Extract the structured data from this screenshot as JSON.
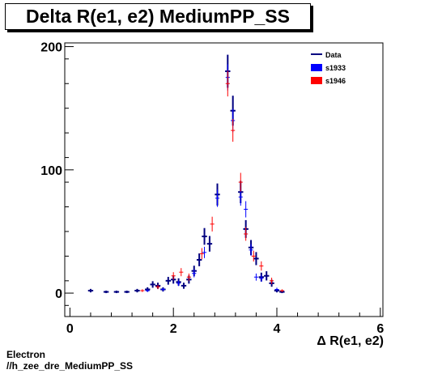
{
  "title": "Delta R(e1, e2) MediumPP_SS",
  "footer": {
    "line1": "Electron",
    "line2": "//h_zee_dre_MediumPP_SS"
  },
  "chart_data": {
    "type": "scatter",
    "xlabel": "Δ R(e1, e2)",
    "ylabel": "",
    "xlim": [
      -0.1,
      6.05
    ],
    "ylim": [
      -19,
      203
    ],
    "xticks": [
      0,
      2,
      4,
      6
    ],
    "yticks": [
      0,
      100,
      200
    ],
    "grid": false,
    "legend_position": "top-right",
    "colors": {
      "Data": "#000080",
      "s1933": "#0000ff",
      "s1946": "#ff0000"
    },
    "series": [
      {
        "name": "Data",
        "style": "errorbar",
        "color": "#000080",
        "points": [
          {
            "x": 0.4,
            "y": 2
          },
          {
            "x": 0.7,
            "y": 1
          },
          {
            "x": 0.9,
            "y": 1
          },
          {
            "x": 1.1,
            "y": 1
          },
          {
            "x": 1.3,
            "y": 2
          },
          {
            "x": 1.5,
            "y": 3
          },
          {
            "x": 1.6,
            "y": 7
          },
          {
            "x": 1.7,
            "y": 6
          },
          {
            "x": 1.8,
            "y": 3
          },
          {
            "x": 1.9,
            "y": 10
          },
          {
            "x": 2.0,
            "y": 11
          },
          {
            "x": 2.1,
            "y": 9
          },
          {
            "x": 2.2,
            "y": 6
          },
          {
            "x": 2.3,
            "y": 11
          },
          {
            "x": 2.4,
            "y": 18
          },
          {
            "x": 2.5,
            "y": 27
          },
          {
            "x": 2.6,
            "y": 46
          },
          {
            "x": 2.7,
            "y": 40
          },
          {
            "x": 2.85,
            "y": 80
          },
          {
            "x": 3.05,
            "y": 180
          },
          {
            "x": 3.15,
            "y": 148
          },
          {
            "x": 3.3,
            "y": 82
          },
          {
            "x": 3.4,
            "y": 52
          },
          {
            "x": 3.5,
            "y": 37
          },
          {
            "x": 3.6,
            "y": 28
          },
          {
            "x": 3.7,
            "y": 13
          },
          {
            "x": 3.8,
            "y": 14
          },
          {
            "x": 3.9,
            "y": 8
          },
          {
            "x": 4.0,
            "y": 2
          },
          {
            "x": 4.1,
            "y": 1
          }
        ]
      },
      {
        "name": "s1933",
        "style": "cross",
        "color": "#0000ff",
        "points": [
          {
            "x": 1.5,
            "y": 2
          },
          {
            "x": 1.8,
            "y": 3
          },
          {
            "x": 2.1,
            "y": 8
          },
          {
            "x": 2.4,
            "y": 16
          },
          {
            "x": 2.6,
            "y": 33
          },
          {
            "x": 2.85,
            "y": 77
          },
          {
            "x": 3.05,
            "y": 175
          },
          {
            "x": 3.15,
            "y": 140
          },
          {
            "x": 3.3,
            "y": 78
          },
          {
            "x": 3.4,
            "y": 68
          },
          {
            "x": 3.5,
            "y": 35
          },
          {
            "x": 3.6,
            "y": 13
          },
          {
            "x": 3.7,
            "y": 12
          },
          {
            "x": 4.0,
            "y": 3
          }
        ]
      },
      {
        "name": "s1946",
        "style": "cross",
        "color": "#ff0000",
        "points": [
          {
            "x": 1.4,
            "y": 2
          },
          {
            "x": 1.7,
            "y": 5
          },
          {
            "x": 2.0,
            "y": 14
          },
          {
            "x": 2.15,
            "y": 17
          },
          {
            "x": 2.3,
            "y": 13
          },
          {
            "x": 2.55,
            "y": 32
          },
          {
            "x": 2.75,
            "y": 56
          },
          {
            "x": 3.05,
            "y": 170
          },
          {
            "x": 3.15,
            "y": 132
          },
          {
            "x": 3.3,
            "y": 90
          },
          {
            "x": 3.4,
            "y": 48
          },
          {
            "x": 3.55,
            "y": 30
          },
          {
            "x": 3.7,
            "y": 22
          },
          {
            "x": 3.9,
            "y": 10
          },
          {
            "x": 4.1,
            "y": 2
          }
        ]
      }
    ]
  }
}
